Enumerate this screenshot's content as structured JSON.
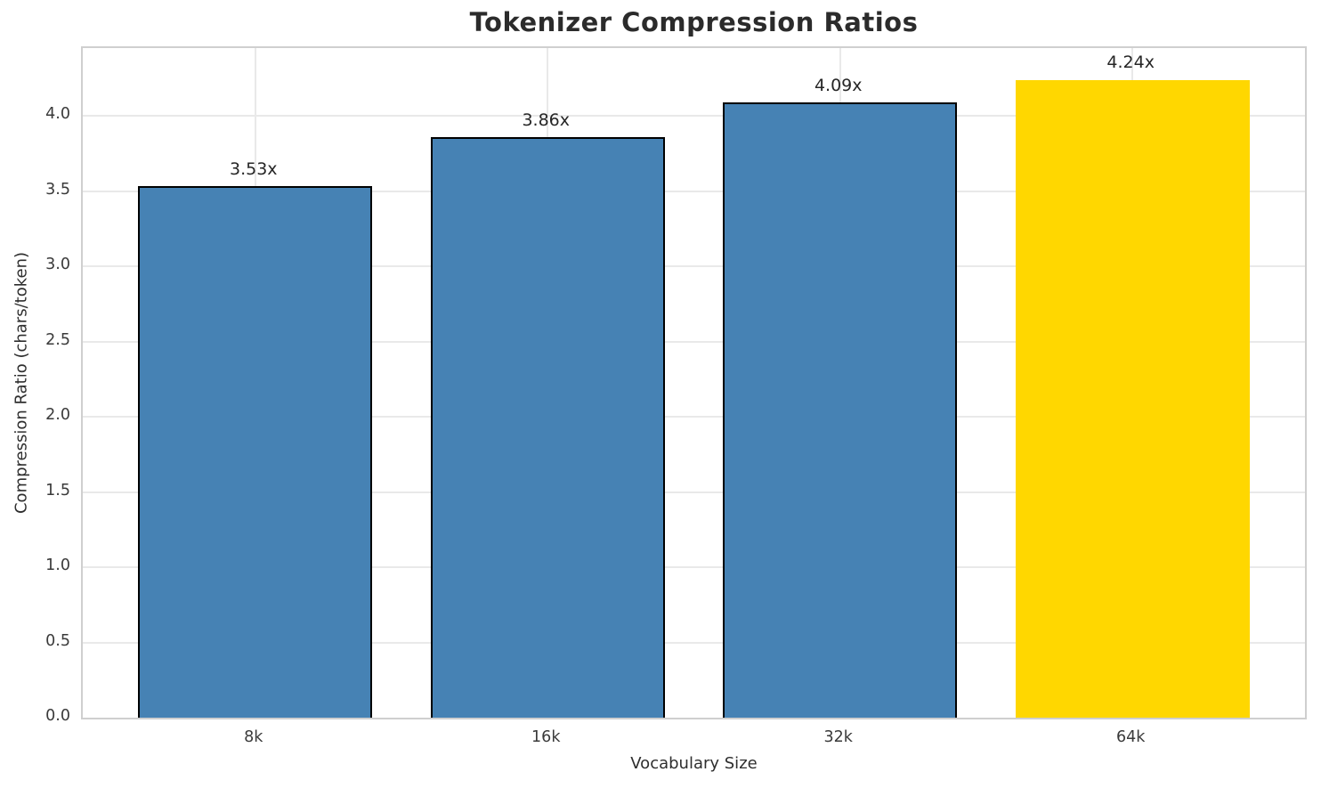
{
  "chart_data": {
    "type": "bar",
    "title": "Tokenizer Compression Ratios",
    "xlabel": "Vocabulary Size",
    "ylabel": "Compression Ratio (chars/token)",
    "categories": [
      "8k",
      "16k",
      "32k",
      "64k"
    ],
    "values": [
      3.53,
      3.86,
      4.09,
      4.24
    ],
    "bar_labels": [
      "3.53x",
      "3.86x",
      "4.09x",
      "4.24x"
    ],
    "bar_colors": [
      "#4682B4",
      "#4682B4",
      "#4682B4",
      "#FFD700"
    ],
    "bar_edge_colors": [
      "#000000",
      "#000000",
      "#000000",
      "none"
    ],
    "highlighted_category": "64k",
    "ylim": [
      0,
      4.45
    ],
    "yticks": [
      0.0,
      0.5,
      1.0,
      1.5,
      2.0,
      2.5,
      3.0,
      3.5,
      4.0
    ],
    "ytick_labels": [
      "0.0",
      "0.5",
      "1.0",
      "1.5",
      "2.0",
      "2.5",
      "3.0",
      "3.5",
      "4.0"
    ],
    "grid": true,
    "grid_color": "#e9e9e9",
    "spine_color": "#cfcfcf",
    "legend": "none",
    "bar_width_fraction": 0.8
  }
}
